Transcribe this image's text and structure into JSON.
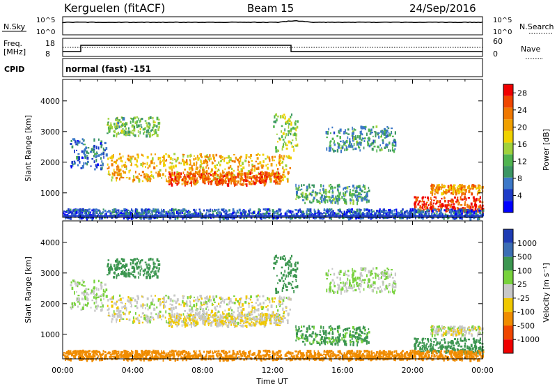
{
  "header": {
    "station": "Kerguelen (fitACF)",
    "beam": "Beam 15",
    "date": "24/Sep/2016"
  },
  "colors": {
    "scale": [
      "#0000ff",
      "#1e3cc8",
      "#3c78c8",
      "#3c9664",
      "#50b450",
      "#a0d23c",
      "#f0d200",
      "#f0a000",
      "#f07800",
      "#f04600",
      "#f00000"
    ],
    "velocity_scale": [
      "#f00000",
      "#f04600",
      "#f08c00",
      "#f0c800",
      "#c8c8c8",
      "#78d23c",
      "#3c9650",
      "#3c6eb4",
      "#1e3cb4"
    ]
  },
  "top_panels": {
    "nsky": {
      "label": "N.Sky",
      "ticks": [
        "10^5",
        "10^0"
      ]
    },
    "nsearch": {
      "label": "N.Search"
    },
    "freq": {
      "label_line1": "Freq.",
      "label_line2": "[MHz]",
      "ticks": [
        "18",
        "8"
      ]
    },
    "nave": {
      "label": "Nave",
      "ticks": [
        "60",
        "0"
      ]
    },
    "cpid": {
      "label": "CPID",
      "value": "normal (fast) -151"
    }
  },
  "chart_data": [
    {
      "type": "heatmap",
      "title": "",
      "quantity": "Power",
      "xlabel": "",
      "ylabel": "Slant Range [km]",
      "x_ticks": [
        "00:00",
        "04:00",
        "08:00",
        "12:00",
        "16:00",
        "20:00",
        "00:00"
      ],
      "y_ticks": [
        "1000",
        "2000",
        "3000",
        "4000"
      ],
      "ylim": [
        200,
        4700
      ],
      "colorbar": {
        "label": "Power [dB]",
        "ticks": [
          "4",
          "8",
          "12",
          "16",
          "20",
          "24",
          "28"
        ],
        "range": [
          0,
          30
        ]
      }
    },
    {
      "type": "heatmap",
      "title": "",
      "quantity": "Velocity",
      "xlabel": "Time UT",
      "ylabel": "Slant Range [km]",
      "x_ticks": [
        "00:00",
        "04:00",
        "08:00",
        "12:00",
        "16:00",
        "20:00",
        "00:00"
      ],
      "y_ticks": [
        "1000",
        "2000",
        "3000",
        "4000"
      ],
      "ylim": [
        200,
        4700
      ],
      "colorbar": {
        "label": "Velocity [m s⁻¹]",
        "ticks": [
          "1000",
          "500",
          "100",
          "25",
          "-25",
          "-100",
          "-500",
          "-1000"
        ]
      }
    }
  ],
  "echo_regions": [
    {
      "t0": 0.4,
      "t1": 2.5,
      "r0": 1800,
      "r1": 2800,
      "power": 6,
      "velocity": 25
    },
    {
      "t0": 2.5,
      "t1": 13.0,
      "r0": 1400,
      "r1": 2300,
      "power": 20,
      "velocity": 0
    },
    {
      "t0": 6.0,
      "t1": 12.5,
      "r0": 1300,
      "r1": 1700,
      "power": 26,
      "velocity": -20
    },
    {
      "t0": 2.5,
      "t1": 5.5,
      "r0": 2900,
      "r1": 3500,
      "power": 12,
      "velocity": 300
    },
    {
      "t0": 12.0,
      "t1": 13.5,
      "r0": 2400,
      "r1": 3600,
      "power": 14,
      "velocity": 150
    },
    {
      "t0": 13.3,
      "t1": 17.5,
      "r0": 700,
      "r1": 1300,
      "power": 10,
      "velocity": 120
    },
    {
      "t0": 15.0,
      "t1": 19.0,
      "r0": 2400,
      "r1": 3200,
      "power": 9,
      "velocity": 25
    },
    {
      "t0": 21.0,
      "t1": 24.0,
      "r0": 1000,
      "r1": 1300,
      "power": 22,
      "velocity": 0
    },
    {
      "t0": 20.0,
      "t1": 24.0,
      "r0": 400,
      "r1": 900,
      "power": 28,
      "velocity": 150
    },
    {
      "t0": 0.0,
      "t1": 24.0,
      "r0": 200,
      "r1": 500,
      "power": 5,
      "velocity": -150
    }
  ]
}
